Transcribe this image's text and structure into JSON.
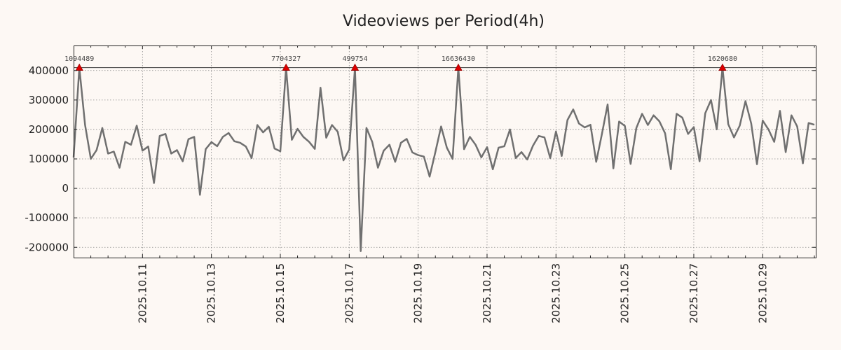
{
  "chart_data": {
    "type": "line",
    "title": "Videoviews per Period(4h)",
    "xlabel": "",
    "ylabel": "",
    "x_start": "2025-10-09T04:00",
    "x_step_hours": 4,
    "x_range_days": [
      0.0,
      21.54
    ],
    "ylim": [
      -235000,
      485000
    ],
    "y_ticks": [
      -200000,
      -100000,
      0,
      100000,
      200000,
      300000,
      400000
    ],
    "x_ticks": [
      {
        "label": "2025.10.11",
        "day": 2.0
      },
      {
        "label": "2025.10.13",
        "day": 4.0
      },
      {
        "label": "2025.10.15",
        "day": 6.0
      },
      {
        "label": "2025.10.17",
        "day": 8.0
      },
      {
        "label": "2025.10.19",
        "day": 10.0
      },
      {
        "label": "2025.10.21",
        "day": 12.0
      },
      {
        "label": "2025.10.23",
        "day": 14.0
      },
      {
        "label": "2025.10.25",
        "day": 16.0
      },
      {
        "label": "2025.10.27",
        "day": 18.0
      },
      {
        "label": "2025.10.29",
        "day": 20.0
      }
    ],
    "grid": true,
    "line_color": "#707070",
    "marker_color": "#dd0000",
    "cap_value": 410000,
    "series": [
      {
        "name": "Videoviews",
        "values": [
          105000,
          410000,
          215000,
          100000,
          130000,
          205000,
          118000,
          125000,
          70000,
          158000,
          148000,
          213000,
          128000,
          142000,
          18000,
          178000,
          185000,
          118000,
          130000,
          92000,
          167000,
          175000,
          -22000,
          133000,
          157000,
          143000,
          175000,
          188000,
          160000,
          155000,
          142000,
          103000,
          215000,
          190000,
          209000,
          135000,
          126000,
          410000,
          165000,
          202000,
          175000,
          158000,
          134000,
          342000,
          172000,
          215000,
          192000,
          95000,
          132000,
          410000,
          -213000,
          205000,
          158000,
          70000,
          128000,
          148000,
          90000,
          155000,
          168000,
          122000,
          113000,
          108000,
          40000,
          123000,
          210000,
          138000,
          100000,
          410000,
          133000,
          175000,
          148000,
          105000,
          140000,
          65000,
          138000,
          143000,
          200000,
          103000,
          123000,
          98000,
          145000,
          178000,
          173000,
          103000,
          193000,
          110000,
          232000,
          268000,
          220000,
          207000,
          216000,
          90000,
          185000,
          285000,
          68000,
          227000,
          212000,
          83000,
          205000,
          253000,
          215000,
          248000,
          228000,
          187000,
          65000,
          253000,
          240000,
          185000,
          208000,
          92000,
          255000,
          300000,
          200000,
          410000,
          218000,
          173000,
          213000,
          296000,
          220000,
          82000,
          230000,
          200000,
          158000,
          263000,
          123000,
          248000,
          210000,
          85000,
          222000,
          216000
        ]
      }
    ],
    "peaks": [
      {
        "index": 1,
        "label": "1094489"
      },
      {
        "index": 37,
        "label": "7704327"
      },
      {
        "index": 49,
        "label": "499754"
      },
      {
        "index": 67,
        "label": "16636430"
      },
      {
        "index": 113,
        "label": "1620680"
      }
    ]
  }
}
